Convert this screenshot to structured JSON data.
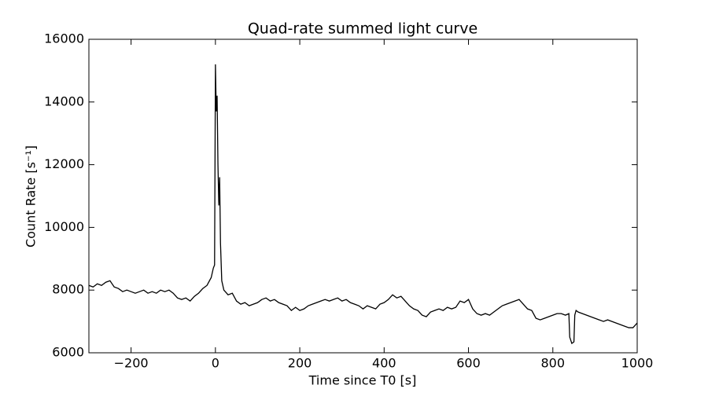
{
  "chart_data": {
    "type": "line",
    "title": "Quad-rate summed light curve",
    "x_label": "Time since T0 [s]",
    "y_label": "Count Rate [s⁻¹]",
    "xlim": [
      -300,
      1000
    ],
    "ylim": [
      6000,
      16000
    ],
    "xticks": [
      {
        "value": -200,
        "label": "−200"
      },
      0,
      200,
      400,
      600,
      800,
      1000
    ],
    "yticks": [
      6000,
      8000,
      10000,
      12000,
      14000,
      16000
    ],
    "grid": false,
    "color": "#000000",
    "x": [
      -300,
      -290,
      -280,
      -270,
      -260,
      -250,
      -240,
      -230,
      -220,
      -210,
      -200,
      -190,
      -180,
      -170,
      -160,
      -150,
      -140,
      -130,
      -120,
      -110,
      -100,
      -90,
      -80,
      -70,
      -60,
      -50,
      -40,
      -30,
      -20,
      -10,
      -5,
      -2,
      0,
      2,
      4,
      6,
      8,
      10,
      12,
      15,
      20,
      30,
      40,
      50,
      60,
      70,
      80,
      90,
      100,
      110,
      120,
      130,
      140,
      150,
      160,
      170,
      180,
      190,
      200,
      210,
      220,
      230,
      240,
      250,
      260,
      270,
      280,
      290,
      300,
      310,
      320,
      330,
      340,
      350,
      360,
      370,
      380,
      390,
      400,
      410,
      420,
      430,
      440,
      450,
      460,
      470,
      480,
      490,
      500,
      510,
      520,
      530,
      540,
      550,
      560,
      570,
      580,
      590,
      600,
      610,
      620,
      630,
      640,
      650,
      660,
      670,
      680,
      690,
      700,
      710,
      720,
      730,
      740,
      750,
      760,
      770,
      780,
      790,
      800,
      810,
      820,
      830,
      838,
      840,
      845,
      850,
      852,
      855,
      860,
      870,
      880,
      890,
      900,
      910,
      920,
      930,
      940,
      950,
      960,
      970,
      980,
      990,
      1000
    ],
    "values": [
      8150,
      8100,
      8200,
      8150,
      8250,
      8300,
      8100,
      8050,
      7950,
      8000,
      7950,
      7900,
      7950,
      8000,
      7900,
      7950,
      7900,
      8000,
      7950,
      8000,
      7900,
      7750,
      7700,
      7750,
      7650,
      7800,
      7900,
      8050,
      8150,
      8400,
      8700,
      8800,
      15200,
      13700,
      14200,
      12000,
      10700,
      11600,
      9500,
      8300,
      8000,
      7850,
      7900,
      7650,
      7550,
      7600,
      7500,
      7550,
      7600,
      7700,
      7750,
      7650,
      7700,
      7600,
      7550,
      7500,
      7350,
      7450,
      7350,
      7400,
      7500,
      7550,
      7600,
      7650,
      7700,
      7650,
      7700,
      7750,
      7650,
      7700,
      7600,
      7550,
      7500,
      7400,
      7500,
      7450,
      7400,
      7550,
      7600,
      7700,
      7850,
      7750,
      7800,
      7650,
      7500,
      7400,
      7350,
      7200,
      7150,
      7300,
      7350,
      7400,
      7350,
      7450,
      7400,
      7450,
      7650,
      7600,
      7700,
      7400,
      7250,
      7200,
      7250,
      7200,
      7300,
      7400,
      7500,
      7550,
      7600,
      7650,
      7700,
      7550,
      7400,
      7350,
      7100,
      7050,
      7100,
      7150,
      7200,
      7250,
      7250,
      7200,
      7250,
      6500,
      6300,
      6350,
      7200,
      7350,
      7300,
      7250,
      7200,
      7150,
      7100,
      7050,
      7000,
      7050,
      7000,
      6950,
      6900,
      6850,
      6800,
      6800,
      6950
    ]
  }
}
